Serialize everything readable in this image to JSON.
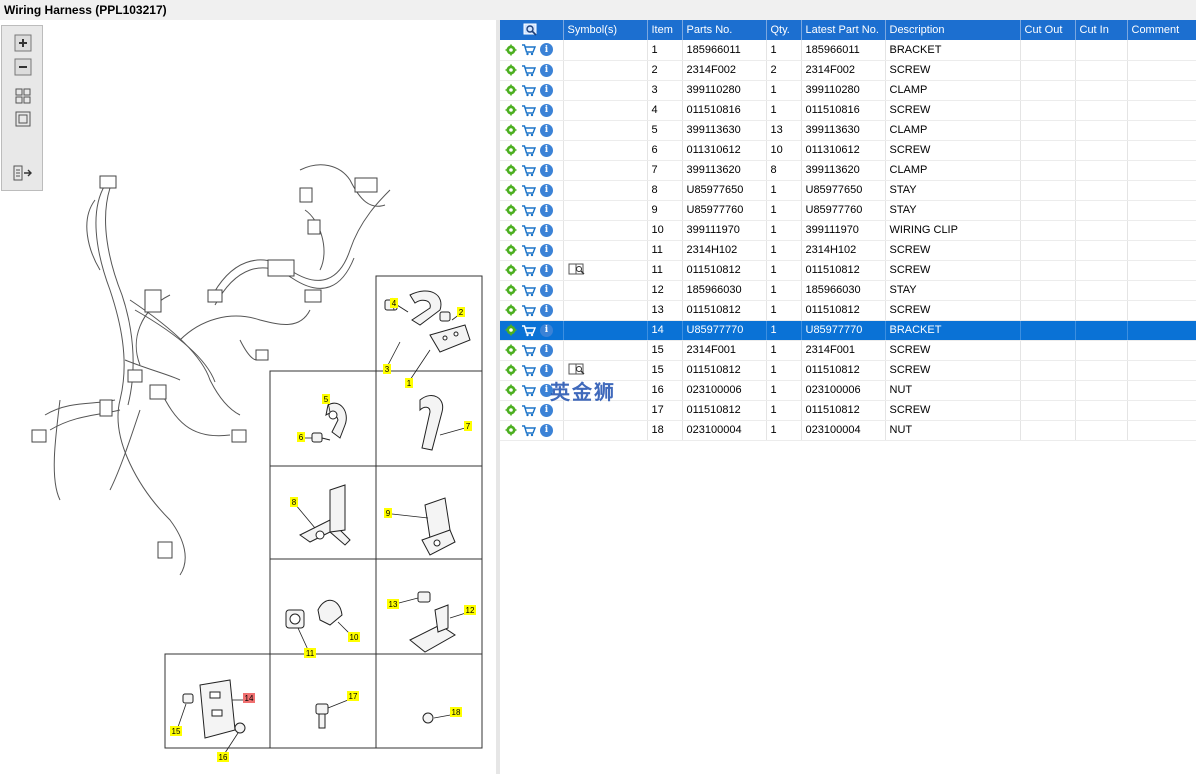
{
  "window": {
    "title": "Wiring Harness (PPL103217)"
  },
  "toolbar": {
    "buttons": [
      {
        "name": "zoom-in-button",
        "icon": "zoom-in-icon"
      },
      {
        "name": "zoom-out-button",
        "icon": "zoom-out-icon"
      },
      {
        "name": "fit-all-button",
        "icon": "fit-all-icon"
      },
      {
        "name": "actual-size-button",
        "icon": "actual-size-icon"
      },
      {
        "name": "export-button",
        "icon": "export-icon"
      }
    ]
  },
  "table": {
    "columns": [
      "",
      "Symbol(s)",
      "Item",
      "Parts No.",
      "Qty.",
      "Latest Part No.",
      "Description",
      "Cut Out",
      "Cut In",
      "Comment"
    ],
    "rows": [
      {
        "item": "1",
        "part": "185966011",
        "qty": "1",
        "latest": "185966011",
        "desc": "BRACKET",
        "symbol": false,
        "selected": false
      },
      {
        "item": "2",
        "part": "2314F002",
        "qty": "2",
        "latest": "2314F002",
        "desc": "SCREW",
        "symbol": false,
        "selected": false
      },
      {
        "item": "3",
        "part": "399110280",
        "qty": "1",
        "latest": "399110280",
        "desc": "CLAMP",
        "symbol": false,
        "selected": false
      },
      {
        "item": "4",
        "part": "011510816",
        "qty": "1",
        "latest": "011510816",
        "desc": "SCREW",
        "symbol": false,
        "selected": false
      },
      {
        "item": "5",
        "part": "399113630",
        "qty": "13",
        "latest": "399113630",
        "desc": "CLAMP",
        "symbol": false,
        "selected": false
      },
      {
        "item": "6",
        "part": "011310612",
        "qty": "10",
        "latest": "011310612",
        "desc": "SCREW",
        "symbol": false,
        "selected": false
      },
      {
        "item": "7",
        "part": "399113620",
        "qty": "8",
        "latest": "399113620",
        "desc": "CLAMP",
        "symbol": false,
        "selected": false
      },
      {
        "item": "8",
        "part": "U85977650",
        "qty": "1",
        "latest": "U85977650",
        "desc": "STAY",
        "symbol": false,
        "selected": false
      },
      {
        "item": "9",
        "part": "U85977760",
        "qty": "1",
        "latest": "U85977760",
        "desc": "STAY",
        "symbol": false,
        "selected": false
      },
      {
        "item": "10",
        "part": "399111970",
        "qty": "1",
        "latest": "399111970",
        "desc": "WIRING CLIP",
        "symbol": false,
        "selected": false
      },
      {
        "item": "11",
        "part": "2314H102",
        "qty": "1",
        "latest": "2314H102",
        "desc": "SCREW",
        "symbol": false,
        "selected": false
      },
      {
        "item": "11",
        "part": "011510812",
        "qty": "1",
        "latest": "011510812",
        "desc": "SCREW",
        "symbol": true,
        "selected": false
      },
      {
        "item": "12",
        "part": "185966030",
        "qty": "1",
        "latest": "185966030",
        "desc": "STAY",
        "symbol": false,
        "selected": false
      },
      {
        "item": "13",
        "part": "011510812",
        "qty": "1",
        "latest": "011510812",
        "desc": "SCREW",
        "symbol": false,
        "selected": false
      },
      {
        "item": "14",
        "part": "U85977770",
        "qty": "1",
        "latest": "U85977770",
        "desc": "BRACKET",
        "symbol": false,
        "selected": true
      },
      {
        "item": "15",
        "part": "2314F001",
        "qty": "1",
        "latest": "2314F001",
        "desc": "SCREW",
        "symbol": false,
        "selected": false
      },
      {
        "item": "15",
        "part": "011510812",
        "qty": "1",
        "latest": "011510812",
        "desc": "SCREW",
        "symbol": true,
        "selected": false
      },
      {
        "item": "16",
        "part": "023100006",
        "qty": "1",
        "latest": "023100006",
        "desc": "NUT",
        "symbol": false,
        "selected": false
      },
      {
        "item": "17",
        "part": "011510812",
        "qty": "1",
        "latest": "011510812",
        "desc": "SCREW",
        "symbol": false,
        "selected": false
      },
      {
        "item": "18",
        "part": "023100004",
        "qty": "1",
        "latest": "023100004",
        "desc": "NUT",
        "symbol": false,
        "selected": false
      }
    ]
  },
  "diagram": {
    "callouts": [
      "1",
      "2",
      "3",
      "4",
      "5",
      "6",
      "7",
      "8",
      "9",
      "10",
      "11",
      "12",
      "13",
      "14",
      "15",
      "16",
      "17",
      "18"
    ],
    "highlight_callout": "14",
    "callout_color": "#ffff00",
    "highlight_color": "#f07070"
  },
  "watermark": "英金狮",
  "colors": {
    "header_bg": "#1c6fd0",
    "selected_row": "#0a72d6",
    "gear": "#4caf20",
    "cart": "#1a73c8"
  }
}
